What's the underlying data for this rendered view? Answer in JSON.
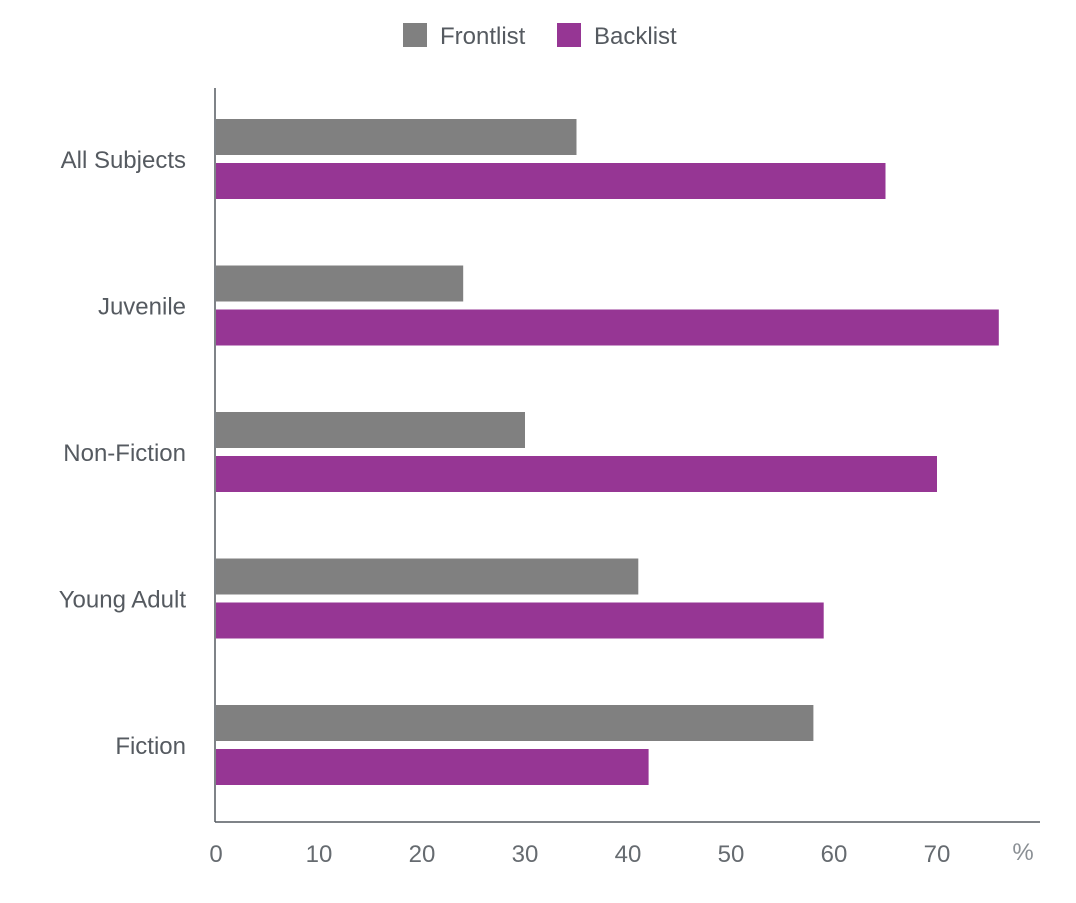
{
  "chart_data": {
    "type": "bar",
    "orientation": "horizontal",
    "categories": [
      "All Subjects",
      "Juvenile",
      "Non-Fiction",
      "Young Adult",
      "Fiction"
    ],
    "series": [
      {
        "name": "Frontlist",
        "color": "#808080",
        "values": [
          35,
          24,
          30,
          41,
          58
        ]
      },
      {
        "name": "Backlist",
        "color": "#963694",
        "values": [
          65,
          76,
          70,
          59,
          42
        ]
      }
    ],
    "x_ticks": [
      "0",
      "10",
      "20",
      "30",
      "40",
      "50",
      "60",
      "70"
    ],
    "x_unit": "%",
    "xlim": [
      0,
      80
    ],
    "grid": false,
    "legend_position": "top-center"
  }
}
